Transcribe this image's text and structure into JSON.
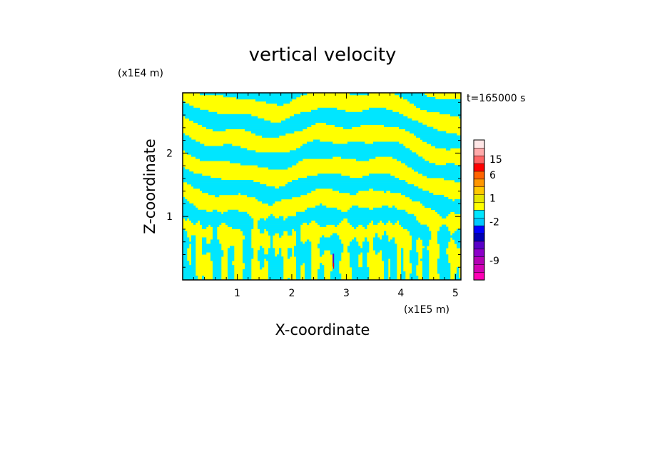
{
  "chart_data": {
    "type": "heatmap",
    "title": "vertical velocity",
    "xlabel": "X-coordinate",
    "ylabel": "Z-coordinate",
    "x_unit": "(x1E5 m)",
    "y_unit": "(x1E4 m)",
    "time_label": "t=165000 s",
    "xlim": [
      0,
      5.1
    ],
    "ylim": [
      0,
      2.95
    ],
    "x_ticks": [
      {
        "value": 1,
        "label": "1"
      },
      {
        "value": 2,
        "label": "2"
      },
      {
        "value": 3,
        "label": "3"
      },
      {
        "value": 4,
        "label": "4"
      },
      {
        "value": 5,
        "label": "5"
      }
    ],
    "y_ticks": [
      {
        "value": 1,
        "label": "1"
      },
      {
        "value": 2,
        "label": "2"
      }
    ],
    "colorbar": {
      "levels": [
        {
          "color": "#ff00b4"
        },
        {
          "color": "#d200b4"
        },
        {
          "color": "#b400b4"
        },
        {
          "color": "#8c00c8"
        },
        {
          "color": "#5a00c8"
        },
        {
          "color": "#0000b4"
        },
        {
          "color": "#0000ff"
        },
        {
          "color": "#00c8ff"
        },
        {
          "color": "#00e6ff"
        },
        {
          "color": "#ffff00"
        },
        {
          "color": "#e6e600"
        },
        {
          "color": "#ffc800"
        },
        {
          "color": "#ff9600"
        },
        {
          "color": "#ff6400"
        },
        {
          "color": "#ff0000"
        },
        {
          "color": "#ff6464"
        },
        {
          "color": "#ffaaaa"
        },
        {
          "color": "#ffe6e6"
        }
      ],
      "labels": [
        {
          "label": "15",
          "level_index": 15
        },
        {
          "label": "6",
          "level_index": 13
        },
        {
          "label": "1",
          "level_index": 10
        },
        {
          "label": "-2",
          "level_index": 7
        },
        {
          "label": "-9",
          "level_index": 2
        }
      ]
    },
    "field_colors": {
      "positive": "#ffff00",
      "negative": "#00e6ff",
      "strong_down": "#5a00c8",
      "strong_up": "#ff0000"
    }
  }
}
